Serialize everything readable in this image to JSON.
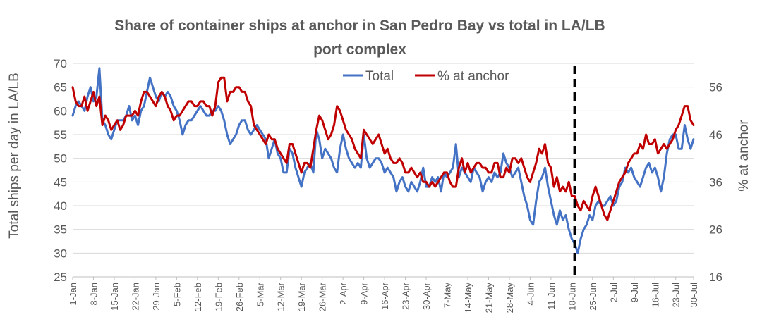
{
  "chart_data": {
    "type": "line",
    "title_line1": "Share of container ships at anchor in San Pedro Bay vs total in LA/LB",
    "title_line2": "port complex",
    "ylabel": "Total ships per day in LA/LB",
    "y2label": "% at anchor",
    "ylim": [
      25,
      70
    ],
    "yticks": [
      25,
      30,
      35,
      40,
      45,
      50,
      55,
      60,
      65,
      70
    ],
    "y2lim": [
      16,
      61
    ],
    "y2ticks": [
      16,
      26,
      36,
      46,
      56
    ],
    "grid": true,
    "legend_position": "top-center",
    "x_tick_labels": [
      "1-Jan",
      "8-Jan",
      "15-Jan",
      "22-Jan",
      "29-Jan",
      "5-Feb",
      "12-Feb",
      "19-Feb",
      "26-Feb",
      "5-Mar",
      "12-Mar",
      "19-Mar",
      "26-Mar",
      "2-Apr",
      "9-Apr",
      "16-Apr",
      "23-Apr",
      "30-Apr",
      "7-May",
      "14-May",
      "21-May",
      "28-May",
      "4-Jun",
      "11-Jun",
      "18-Jun",
      "25-Jun",
      "2-Jul",
      "9-Jul",
      "16-Jul",
      "23-Jul",
      "30-Jul"
    ],
    "vertical_marker_date": "19-Jun",
    "series": [
      {
        "name": "Total",
        "color": "#4472C4",
        "axis": "left",
        "values": [
          59,
          61,
          62,
          61,
          60,
          63,
          65,
          62,
          63,
          69,
          58,
          57,
          55,
          54,
          56,
          58,
          58,
          58,
          59,
          61,
          58,
          59,
          57,
          60,
          61,
          64,
          67,
          65,
          63,
          62,
          64,
          63,
          64,
          63,
          61,
          60,
          58,
          55,
          57,
          58,
          58,
          59,
          60,
          61,
          60,
          59,
          59,
          60,
          60,
          61,
          60,
          58,
          55,
          53,
          54,
          55,
          57,
          58,
          58,
          56,
          55,
          56,
          57,
          56,
          55,
          54,
          50,
          52,
          54,
          51,
          50,
          47,
          47,
          52,
          51,
          48,
          46,
          44,
          47,
          48,
          49,
          47,
          56,
          54,
          50,
          52,
          51,
          50,
          48,
          47,
          52,
          55,
          52,
          50,
          49,
          48,
          49,
          48,
          55,
          50,
          48,
          49,
          50,
          50,
          49,
          47,
          48,
          47,
          46,
          43,
          45,
          46,
          44,
          43,
          45,
          44,
          43,
          45,
          48,
          44,
          44,
          46,
          45,
          46,
          43,
          47,
          46,
          47,
          48,
          53,
          46,
          48,
          47,
          46,
          45,
          48,
          47,
          46,
          43,
          45,
          46,
          45,
          47,
          46,
          47,
          51,
          49,
          48,
          46,
          47,
          48,
          45,
          42,
          40,
          37,
          36,
          41,
          45,
          46,
          48,
          44,
          41,
          38,
          36,
          39,
          37,
          38,
          35,
          33,
          32,
          30,
          33,
          35,
          36,
          38,
          37,
          40,
          41,
          40,
          40,
          41,
          42,
          40,
          41,
          44,
          45,
          48,
          47,
          48,
          46,
          45,
          44,
          46,
          48,
          49,
          47,
          48,
          46,
          43,
          46,
          51,
          54,
          55,
          55,
          52,
          52,
          57,
          54,
          52,
          54
        ],
        "end": "30-Jul"
      },
      {
        "name": "% at anchor",
        "color": "#C00000",
        "axis": "right",
        "values": [
          56,
          53,
          52,
          52,
          54,
          51,
          53,
          55,
          52,
          54,
          48,
          50,
          49,
          47,
          48,
          49,
          47,
          48,
          50,
          50,
          50,
          51,
          50,
          53,
          55,
          55,
          54,
          53,
          52,
          54,
          55,
          54,
          52,
          51,
          49,
          50,
          50,
          51,
          52,
          53,
          53,
          52,
          52,
          53,
          53,
          52,
          52,
          50,
          52,
          57,
          58,
          58,
          53,
          55,
          55,
          56,
          56,
          55,
          55,
          53,
          52,
          48,
          47,
          46,
          45,
          44,
          46,
          45,
          45,
          43,
          42,
          41,
          40,
          44,
          44,
          42,
          40,
          38,
          40,
          40,
          39,
          43,
          47,
          50,
          49,
          47,
          45,
          46,
          48,
          52,
          51,
          49,
          47,
          46,
          45,
          43,
          42,
          41,
          47,
          46,
          45,
          44,
          45,
          46,
          44,
          42,
          43,
          41,
          40,
          40,
          41,
          40,
          38,
          38,
          39,
          38,
          37,
          38,
          36,
          36,
          35,
          36,
          35,
          36,
          37,
          38,
          38,
          36,
          35,
          35,
          39,
          41,
          38,
          40,
          38,
          39,
          40,
          40,
          39,
          39,
          38,
          38,
          40,
          40,
          37,
          37,
          39,
          38,
          41,
          41,
          40,
          41,
          39,
          37,
          36,
          38,
          40,
          43,
          42,
          44,
          40,
          39,
          35,
          37,
          34,
          35,
          34,
          36,
          33,
          33,
          31,
          30,
          32,
          31,
          30,
          33,
          35,
          33,
          31,
          29,
          28,
          30,
          32,
          34,
          36,
          37,
          38,
          40,
          41,
          42,
          42,
          44,
          43,
          46,
          44,
          44,
          45,
          42,
          43,
          44,
          43,
          44,
          45,
          47,
          48,
          50,
          52,
          52,
          49,
          48
        ]
      }
    ]
  }
}
